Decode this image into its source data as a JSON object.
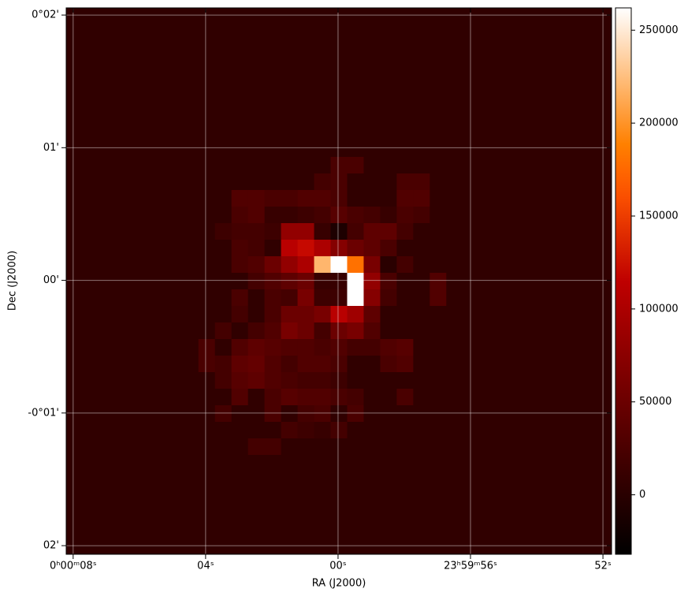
{
  "chart_data": {
    "type": "image",
    "xlabel": "RA (J2000)",
    "ylabel": "Dec (J2000)",
    "xlim": [
      8.21,
      -8.26
    ],
    "xticks": [
      {
        "value": 8,
        "label": "0ʰ00ᵐ08ˢ"
      },
      {
        "value": 4,
        "label": "04ˢ"
      },
      {
        "value": 0,
        "label": "00ˢ"
      },
      {
        "value": -4,
        "label": "23ʰ59ᵐ56ˢ"
      },
      {
        "value": -8,
        "label": "52ˢ"
      }
    ],
    "ylim": [
      -2.065,
      2.054
    ],
    "yticks": [
      {
        "value": 2,
        "label": "0°02'"
      },
      {
        "value": 1,
        "label": "01'"
      },
      {
        "value": 0,
        "label": "00'"
      },
      {
        "value": -1,
        "label": "-0°01'"
      },
      {
        "value": -2,
        "label": "02'"
      }
    ],
    "grid": true,
    "colormap": "gist_heat",
    "zlim": [
      -32000,
      262000
    ],
    "zticks": [
      0,
      50000,
      100000,
      150000,
      200000,
      250000
    ],
    "z": [
      [
        5000,
        5000,
        5000,
        5000,
        5000,
        5000,
        5000,
        5000,
        5000,
        5000,
        5000,
        5000,
        5000,
        5000,
        5000,
        5000,
        5000,
        5000,
        5000,
        5000,
        5000,
        5000,
        5000,
        5000,
        5000,
        5000,
        5000,
        5000,
        5000,
        5000,
        5000,
        5000,
        5000
      ],
      [
        5000,
        5000,
        5000,
        5000,
        5000,
        5000,
        5000,
        5000,
        5000,
        5000,
        5000,
        5000,
        5000,
        5000,
        5000,
        5000,
        5000,
        5000,
        5000,
        5000,
        5000,
        5000,
        5000,
        5000,
        5000,
        5000,
        5000,
        5000,
        5000,
        5000,
        5000,
        5000,
        5000
      ],
      [
        5000,
        5000,
        5000,
        5000,
        5000,
        5000,
        5000,
        5000,
        5000,
        5000,
        5000,
        5000,
        5000,
        5000,
        5000,
        5000,
        5000,
        5000,
        5000,
        5000,
        5000,
        5000,
        5000,
        5000,
        5000,
        5000,
        5000,
        5000,
        5000,
        5000,
        5000,
        5000,
        5000
      ],
      [
        5000,
        5000,
        5000,
        5000,
        5000,
        5000,
        5000,
        5000,
        5000,
        5000,
        5000,
        5000,
        5000,
        5000,
        5000,
        5000,
        5000,
        5000,
        5000,
        5000,
        5000,
        5000,
        5000,
        5000,
        5000,
        5000,
        5000,
        5000,
        5000,
        5000,
        5000,
        5000,
        5000
      ],
      [
        5000,
        5000,
        5000,
        5000,
        5000,
        5000,
        5000,
        5000,
        5000,
        5000,
        5000,
        5000,
        5000,
        5000,
        5000,
        5000,
        5000,
        5000,
        5000,
        5000,
        5000,
        5000,
        5000,
        5000,
        5000,
        5000,
        5000,
        5000,
        5000,
        5000,
        5000,
        5000,
        5000
      ],
      [
        5000,
        5000,
        5000,
        5000,
        5000,
        5000,
        5000,
        5000,
        5000,
        5000,
        5000,
        5000,
        5000,
        5000,
        5000,
        5000,
        5000,
        5000,
        5000,
        5000,
        5000,
        5000,
        5000,
        5000,
        5000,
        5000,
        5000,
        5000,
        5000,
        5000,
        5000,
        5000,
        5000
      ],
      [
        5000,
        5000,
        5000,
        5000,
        5000,
        5000,
        5000,
        5000,
        5000,
        5000,
        5000,
        5000,
        5000,
        5000,
        5000,
        5000,
        5000,
        5000,
        5000,
        5000,
        5000,
        5000,
        5000,
        5000,
        5000,
        5000,
        5000,
        5000,
        5000,
        5000,
        5000,
        5000,
        5000
      ],
      [
        5000,
        5000,
        5000,
        5000,
        5000,
        5000,
        5000,
        5000,
        5000,
        5000,
        5000,
        5000,
        5000,
        5000,
        5000,
        5000,
        5000,
        5000,
        5000,
        5000,
        5000,
        5000,
        5000,
        5000,
        5000,
        5000,
        5000,
        5000,
        5000,
        5000,
        5000,
        5000,
        5000
      ],
      [
        5000,
        5000,
        5000,
        5000,
        5000,
        5000,
        5000,
        5000,
        5000,
        5000,
        5000,
        5000,
        5000,
        5000,
        5000,
        5000,
        5000,
        5000,
        5000,
        5000,
        5000,
        5000,
        5000,
        5000,
        5000,
        5000,
        5000,
        5000,
        5000,
        5000,
        5000,
        5000,
        5000
      ],
      [
        5000,
        5000,
        5000,
        5000,
        5000,
        5000,
        5000,
        5000,
        5000,
        5000,
        5000,
        5000,
        5000,
        5000,
        5000,
        5000,
        25000,
        25000,
        5000,
        5000,
        5000,
        5000,
        5000,
        5000,
        5000,
        5000,
        5000,
        5000,
        5000,
        5000,
        5000,
        5000,
        5000
      ],
      [
        5000,
        5000,
        5000,
        5000,
        5000,
        5000,
        5000,
        5000,
        5000,
        5000,
        5000,
        5000,
        5000,
        5000,
        5000,
        20000,
        25000,
        5000,
        5000,
        5000,
        25000,
        25000,
        5000,
        5000,
        5000,
        5000,
        5000,
        5000,
        5000,
        5000,
        5000,
        5000,
        5000
      ],
      [
        5000,
        5000,
        5000,
        5000,
        5000,
        5000,
        5000,
        5000,
        5000,
        5000,
        30000,
        30000,
        25000,
        25000,
        30000,
        30000,
        25000,
        5000,
        5000,
        5000,
        30000,
        30000,
        5000,
        5000,
        5000,
        5000,
        5000,
        5000,
        5000,
        5000,
        5000,
        5000,
        5000
      ],
      [
        5000,
        5000,
        5000,
        5000,
        5000,
        5000,
        5000,
        5000,
        5000,
        5000,
        25000,
        30000,
        10000,
        10000,
        15000,
        20000,
        35000,
        25000,
        20000,
        10000,
        25000,
        20000,
        5000,
        5000,
        5000,
        5000,
        5000,
        5000,
        5000,
        5000,
        5000,
        5000,
        5000
      ],
      [
        5000,
        5000,
        5000,
        5000,
        5000,
        5000,
        5000,
        5000,
        5000,
        15000,
        20000,
        20000,
        15000,
        80000,
        80000,
        10000,
        -10000,
        20000,
        40000,
        40000,
        20000,
        5000,
        5000,
        5000,
        5000,
        5000,
        5000,
        5000,
        5000,
        5000,
        5000,
        5000,
        5000
      ],
      [
        5000,
        5000,
        5000,
        5000,
        5000,
        5000,
        5000,
        5000,
        5000,
        5000,
        25000,
        20000,
        5000,
        110000,
        120000,
        100000,
        70000,
        50000,
        40000,
        25000,
        5000,
        5000,
        5000,
        5000,
        5000,
        5000,
        5000,
        5000,
        5000,
        5000,
        5000,
        5000,
        5000
      ],
      [
        5000,
        5000,
        5000,
        5000,
        5000,
        5000,
        5000,
        5000,
        5000,
        5000,
        25000,
        30000,
        50000,
        80000,
        100000,
        220000,
        262000,
        180000,
        60000,
        0,
        20000,
        5000,
        5000,
        5000,
        5000,
        5000,
        5000,
        5000,
        5000,
        5000,
        5000,
        5000,
        5000
      ],
      [
        5000,
        5000,
        5000,
        5000,
        5000,
        5000,
        5000,
        5000,
        5000,
        5000,
        5000,
        20000,
        30000,
        40000,
        50000,
        10000,
        10000,
        262000,
        80000,
        25000,
        5000,
        5000,
        30000,
        5000,
        5000,
        5000,
        5000,
        5000,
        5000,
        5000,
        5000,
        5000,
        5000
      ],
      [
        5000,
        5000,
        5000,
        5000,
        5000,
        5000,
        5000,
        5000,
        5000,
        5000,
        25000,
        5000,
        25000,
        20000,
        60000,
        15000,
        15000,
        262000,
        70000,
        20000,
        5000,
        5000,
        30000,
        5000,
        5000,
        5000,
        5000,
        5000,
        5000,
        5000,
        5000,
        5000,
        5000
      ],
      [
        5000,
        5000,
        5000,
        5000,
        5000,
        5000,
        5000,
        5000,
        5000,
        5000,
        20000,
        5000,
        25000,
        50000,
        50000,
        60000,
        110000,
        90000,
        40000,
        5000,
        5000,
        5000,
        5000,
        5000,
        5000,
        5000,
        5000,
        5000,
        5000,
        5000,
        5000,
        5000,
        5000
      ],
      [
        5000,
        5000,
        5000,
        5000,
        5000,
        5000,
        5000,
        5000,
        5000,
        20000,
        5000,
        20000,
        30000,
        60000,
        50000,
        20000,
        50000,
        60000,
        30000,
        5000,
        5000,
        5000,
        5000,
        5000,
        5000,
        5000,
        5000,
        5000,
        5000,
        5000,
        5000,
        5000,
        5000
      ],
      [
        5000,
        5000,
        5000,
        5000,
        5000,
        5000,
        5000,
        5000,
        25000,
        5000,
        30000,
        40000,
        35000,
        30000,
        30000,
        25000,
        30000,
        20000,
        20000,
        30000,
        35000,
        5000,
        5000,
        5000,
        5000,
        5000,
        5000,
        5000,
        5000,
        5000,
        5000,
        5000,
        5000
      ],
      [
        5000,
        5000,
        5000,
        5000,
        5000,
        5000,
        5000,
        5000,
        25000,
        20000,
        40000,
        45000,
        30000,
        20000,
        30000,
        30000,
        25000,
        5000,
        5000,
        25000,
        30000,
        5000,
        5000,
        5000,
        5000,
        5000,
        5000,
        5000,
        5000,
        5000,
        5000,
        5000,
        5000
      ],
      [
        5000,
        5000,
        5000,
        5000,
        5000,
        5000,
        5000,
        5000,
        5000,
        20000,
        35000,
        40000,
        30000,
        25000,
        20000,
        20000,
        15000,
        5000,
        5000,
        5000,
        5000,
        5000,
        5000,
        5000,
        5000,
        5000,
        5000,
        5000,
        5000,
        5000,
        5000,
        5000,
        5000
      ],
      [
        5000,
        5000,
        5000,
        5000,
        5000,
        5000,
        5000,
        5000,
        5000,
        5000,
        30000,
        5000,
        25000,
        35000,
        30000,
        30000,
        25000,
        20000,
        5000,
        5000,
        25000,
        5000,
        5000,
        5000,
        5000,
        5000,
        5000,
        5000,
        5000,
        5000,
        5000,
        5000,
        5000
      ],
      [
        5000,
        5000,
        5000,
        5000,
        5000,
        5000,
        5000,
        5000,
        5000,
        20000,
        5000,
        5000,
        25000,
        5000,
        20000,
        25000,
        5000,
        25000,
        5000,
        5000,
        5000,
        5000,
        5000,
        5000,
        5000,
        5000,
        5000,
        5000,
        5000,
        5000,
        5000,
        5000,
        5000
      ],
      [
        5000,
        5000,
        5000,
        5000,
        5000,
        5000,
        5000,
        5000,
        5000,
        5000,
        5000,
        5000,
        5000,
        20000,
        15000,
        10000,
        20000,
        5000,
        5000,
        5000,
        5000,
        5000,
        5000,
        5000,
        5000,
        5000,
        5000,
        5000,
        5000,
        5000,
        5000,
        5000,
        5000
      ],
      [
        5000,
        5000,
        5000,
        5000,
        5000,
        5000,
        5000,
        5000,
        5000,
        5000,
        5000,
        20000,
        20000,
        5000,
        5000,
        5000,
        5000,
        5000,
        5000,
        5000,
        5000,
        5000,
        5000,
        5000,
        5000,
        5000,
        5000,
        5000,
        5000,
        5000,
        5000,
        5000,
        5000
      ],
      [
        5000,
        5000,
        5000,
        5000,
        5000,
        5000,
        5000,
        5000,
        5000,
        5000,
        5000,
        5000,
        5000,
        5000,
        5000,
        5000,
        5000,
        5000,
        5000,
        5000,
        5000,
        5000,
        5000,
        5000,
        5000,
        5000,
        5000,
        5000,
        5000,
        5000,
        5000,
        5000,
        5000
      ],
      [
        5000,
        5000,
        5000,
        5000,
        5000,
        5000,
        5000,
        5000,
        5000,
        5000,
        5000,
        5000,
        5000,
        5000,
        5000,
        5000,
        5000,
        5000,
        5000,
        5000,
        5000,
        5000,
        5000,
        5000,
        5000,
        5000,
        5000,
        5000,
        5000,
        5000,
        5000,
        5000,
        5000
      ],
      [
        5000,
        5000,
        5000,
        5000,
        5000,
        5000,
        5000,
        5000,
        5000,
        5000,
        5000,
        5000,
        5000,
        5000,
        5000,
        5000,
        5000,
        5000,
        5000,
        5000,
        5000,
        5000,
        5000,
        5000,
        5000,
        5000,
        5000,
        5000,
        5000,
        5000,
        5000,
        5000,
        5000
      ],
      [
        5000,
        5000,
        5000,
        5000,
        5000,
        5000,
        5000,
        5000,
        5000,
        5000,
        5000,
        5000,
        5000,
        5000,
        5000,
        5000,
        5000,
        5000,
        5000,
        5000,
        5000,
        5000,
        5000,
        5000,
        5000,
        5000,
        5000,
        5000,
        5000,
        5000,
        5000,
        5000,
        5000
      ],
      [
        5000,
        5000,
        5000,
        5000,
        5000,
        5000,
        5000,
        5000,
        5000,
        5000,
        5000,
        5000,
        5000,
        5000,
        5000,
        5000,
        5000,
        5000,
        5000,
        5000,
        5000,
        5000,
        5000,
        5000,
        5000,
        5000,
        5000,
        5000,
        5000,
        5000,
        5000,
        5000,
        5000
      ],
      [
        5000,
        5000,
        5000,
        5000,
        5000,
        5000,
        5000,
        5000,
        5000,
        5000,
        5000,
        5000,
        5000,
        5000,
        5000,
        5000,
        5000,
        5000,
        5000,
        5000,
        5000,
        5000,
        5000,
        5000,
        5000,
        5000,
        5000,
        5000,
        5000,
        5000,
        5000,
        5000,
        5000
      ]
    ]
  }
}
